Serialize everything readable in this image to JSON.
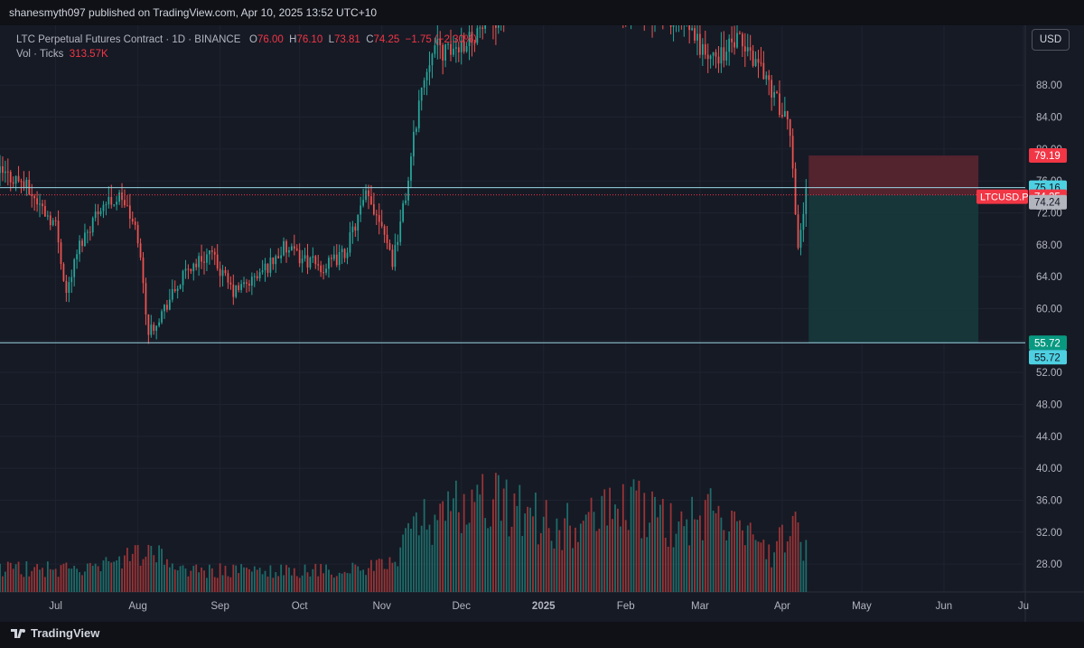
{
  "header": {
    "published_text": "shanesmyth097 published on TradingView.com, Apr 10, 2025 13:52 UTC+10"
  },
  "legend": {
    "symbol_line": "LTC Perpetual Futures Contract · 1D · BINANCE",
    "o_key": "O",
    "o_val": "76.00",
    "h_key": "H",
    "h_val": "76.10",
    "l_key": "L",
    "l_val": "73.81",
    "c_key": "C",
    "c_val": "74.25",
    "change": "−1.75 (−2.30%)",
    "vol_label": "Vol · Ticks",
    "vol_val": "313.57K"
  },
  "scale_button": "USD",
  "footer": {
    "brand": "TradingView"
  },
  "colors": {
    "up": "#26a69a",
    "down": "#ef5350",
    "up_volume": "#1e7d77",
    "down_volume": "#b33a3a",
    "hline": "#9ad6e3",
    "price_label": "#f23645",
    "target_label": "#089981",
    "hline_label": "#4dd0e1",
    "stop_zone": "#5a2530",
    "target_zone": "#163a3d"
  },
  "chart_data": {
    "type": "candlestick",
    "symbol": "LTCUSD.P",
    "timeframe": "1D",
    "y_ticks": [
      "28.00",
      "32.00",
      "36.00",
      "40.00",
      "44.00",
      "48.00",
      "52.00",
      "56.00",
      "60.00",
      "64.00",
      "68.00",
      "72.00",
      "76.00",
      "80.00",
      "84.00",
      "88.00"
    ],
    "y_range": [
      24.5,
      95.5
    ],
    "x_ticks": [
      "Jul",
      "Aug",
      "Sep",
      "Oct",
      "Nov",
      "Dec",
      "2025",
      "Feb",
      "Mar",
      "Apr",
      "May",
      "Jun",
      "Ju"
    ],
    "x_tick_dates": [
      "2024-07-01",
      "2024-08-01",
      "2024-09-01",
      "2024-10-01",
      "2024-11-01",
      "2024-12-01",
      "2025-01-01",
      "2025-02-01",
      "2025-03-01",
      "2025-04-01",
      "2025-05-01",
      "2025-06-01",
      "2025-07-01"
    ],
    "x_range": [
      "2024-06-10",
      "2025-07-01"
    ],
    "last_price": {
      "label": "LTCUSD.P",
      "value": "74.25"
    },
    "horizontal_lines": [
      {
        "value": 75.16,
        "label": "75.16"
      },
      {
        "value": 55.72,
        "label": "55.72"
      }
    ],
    "position_tool": {
      "type": "short",
      "start": "2025-04-11",
      "end": "2025-06-14",
      "entry": 74.24,
      "entry_label": "74.24",
      "stop": 79.19,
      "stop_label": "79.19",
      "target": 55.72,
      "target_label": "55.72"
    },
    "price_path": [
      [
        "2024-06-10",
        77.0
      ],
      [
        "2024-06-18",
        76.0
      ],
      [
        "2024-06-25",
        73.0
      ],
      [
        "2024-07-01",
        70.5
      ],
      [
        "2024-07-05",
        62.0
      ],
      [
        "2024-07-10",
        68.0
      ],
      [
        "2024-07-18",
        73.0
      ],
      [
        "2024-07-26",
        74.0
      ],
      [
        "2024-08-01",
        69.0
      ],
      [
        "2024-08-05",
        57.0
      ],
      [
        "2024-08-10",
        59.5
      ],
      [
        "2024-08-20",
        65.0
      ],
      [
        "2024-08-28",
        67.0
      ],
      [
        "2024-09-06",
        62.0
      ],
      [
        "2024-09-15",
        64.0
      ],
      [
        "2024-09-25",
        67.5
      ],
      [
        "2024-10-01",
        66.5
      ],
      [
        "2024-10-10",
        65.0
      ],
      [
        "2024-10-18",
        67.0
      ],
      [
        "2024-10-26",
        74.0
      ],
      [
        "2024-11-01",
        71.0
      ],
      [
        "2024-11-05",
        66.0
      ],
      [
        "2024-11-10",
        74.0
      ],
      [
        "2024-11-15",
        86.0
      ],
      [
        "2024-11-20",
        93.0
      ],
      [
        "2024-11-26",
        92.0
      ],
      [
        "2025-01-05",
        102.0
      ],
      [
        "2025-02-25",
        95.0
      ],
      [
        "2025-03-05",
        91.0
      ],
      [
        "2025-03-15",
        93.5
      ],
      [
        "2025-03-24",
        90.5
      ],
      [
        "2025-03-30",
        86.0
      ],
      [
        "2025-04-04",
        82.0
      ],
      [
        "2025-04-07",
        68.0
      ],
      [
        "2025-04-10",
        74.25
      ]
    ],
    "volume_path": [
      [
        "2024-06-10",
        0.18
      ],
      [
        "2024-07-15",
        0.17
      ],
      [
        "2024-08-05",
        0.3
      ],
      [
        "2024-08-20",
        0.16
      ],
      [
        "2024-10-15",
        0.16
      ],
      [
        "2024-11-01",
        0.19
      ],
      [
        "2024-11-08",
        0.32
      ],
      [
        "2024-11-15",
        0.55
      ],
      [
        "2024-11-22",
        0.52
      ],
      [
        "2024-12-06",
        0.75
      ],
      [
        "2024-12-20",
        0.65
      ],
      [
        "2025-01-05",
        0.5
      ],
      [
        "2025-01-20",
        0.55
      ],
      [
        "2025-02-03",
        0.68
      ],
      [
        "2025-02-20",
        0.48
      ],
      [
        "2025-03-05",
        0.6
      ],
      [
        "2025-03-15",
        0.45
      ],
      [
        "2025-03-28",
        0.3
      ],
      [
        "2025-04-07",
        0.52
      ],
      [
        "2025-04-10",
        0.3
      ]
    ]
  }
}
